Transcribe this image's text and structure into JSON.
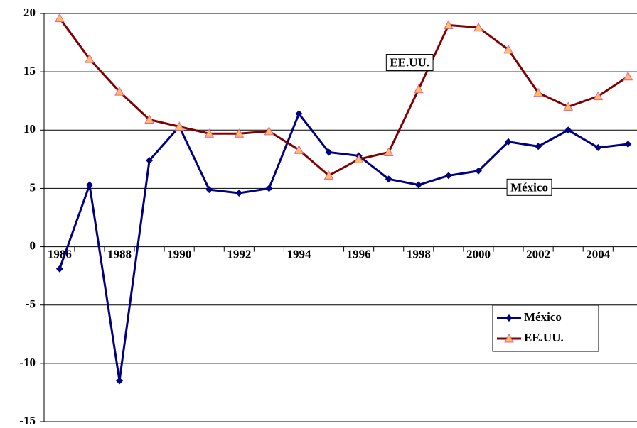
{
  "chart_data": {
    "type": "line",
    "x": [
      1986,
      1987,
      1988,
      1989,
      1990,
      1991,
      1992,
      1993,
      1994,
      1995,
      1996,
      1997,
      1998,
      1999,
      2000,
      2001,
      2002,
      2003,
      2004,
      2005
    ],
    "xlim": [
      1985.48,
      2005.3
    ],
    "xticks": [
      1986,
      1988,
      1990,
      1992,
      1994,
      1996,
      1998,
      2000,
      2002,
      2004
    ],
    "ylim": [
      -15,
      20
    ],
    "yticks": [
      -15,
      -10,
      -5,
      0,
      5,
      10,
      15,
      20
    ],
    "grid": true,
    "legend": "lower right",
    "series": [
      {
        "name": "México",
        "color": "#000080",
        "marker": "diamond",
        "marker_color": "#000080",
        "values": [
          -1.9,
          5.3,
          -11.5,
          7.4,
          10.3,
          4.9,
          4.6,
          5.0,
          11.4,
          8.1,
          7.8,
          5.8,
          5.3,
          6.1,
          6.5,
          9.0,
          8.6,
          10.0,
          8.5,
          8.8
        ]
      },
      {
        "name": "EE.UU.",
        "color": "#800000",
        "marker": "triangle",
        "marker_color": "#ffc060",
        "values": [
          19.6,
          16.1,
          13.3,
          10.9,
          10.3,
          9.7,
          9.7,
          9.9,
          8.3,
          6.1,
          7.5,
          8.1,
          13.5,
          19.0,
          18.8,
          16.9,
          13.2,
          12.0,
          12.9,
          14.6
        ]
      }
    ],
    "annotations": [
      {
        "text": "EE.UU.",
        "x": 1997.7,
        "y": 15.7,
        "size": 26
      },
      {
        "text": "México",
        "x": 2001.7,
        "y": 5.0,
        "size": 18
      }
    ]
  }
}
